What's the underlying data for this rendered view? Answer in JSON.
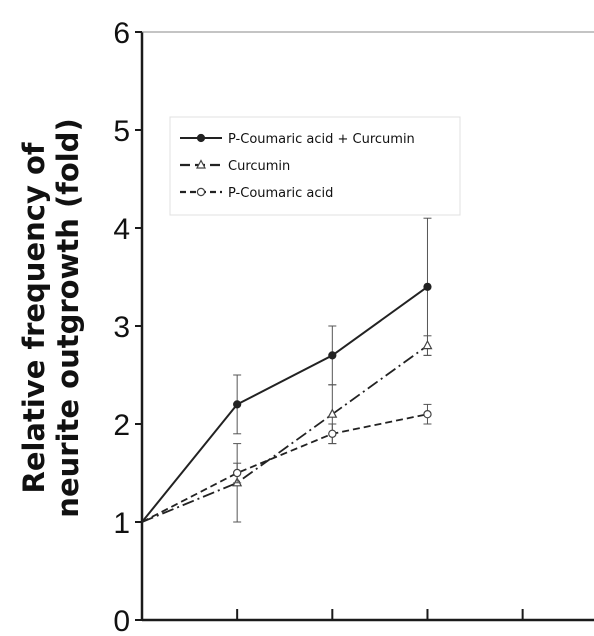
{
  "chart_data": {
    "type": "line",
    "title": "",
    "xlabel": "",
    "ylabel": [
      "Relative frequency of",
      "neurite outgrowth  (fold)"
    ],
    "ylim": [
      0,
      6
    ],
    "yticks": [
      "0",
      "1",
      "2",
      "3",
      "4",
      "5",
      "6"
    ],
    "x": [
      0,
      1,
      2,
      3
    ],
    "xlim": [
      0,
      4.75
    ],
    "xtick_positions": [
      1,
      2,
      3,
      4
    ],
    "grid": false,
    "legend_position": "top-left",
    "series": [
      {
        "name": "P-Coumaric acid  + Curcumin",
        "style": "solid",
        "marker": "circle-filled",
        "values": [
          1.0,
          2.2,
          2.7,
          3.4
        ],
        "errors": [
          0,
          0.3,
          0.3,
          0.7
        ]
      },
      {
        "name": "Curcumin",
        "style": "dashdot",
        "marker": "triangle",
        "values": [
          1.0,
          1.4,
          2.1,
          2.8
        ],
        "errors": [
          0,
          0.4,
          0.3,
          0.1
        ]
      },
      {
        "name": "P-Coumaric acid",
        "style": "dashed",
        "marker": "circle-open",
        "values": [
          1.0,
          1.5,
          1.9,
          2.1
        ],
        "errors": [
          0,
          0.1,
          0.1,
          0.1
        ]
      }
    ],
    "colors": {
      "line": "#222222",
      "axis": "#1a1a1a",
      "legend_border": "#e0e0e0"
    }
  }
}
